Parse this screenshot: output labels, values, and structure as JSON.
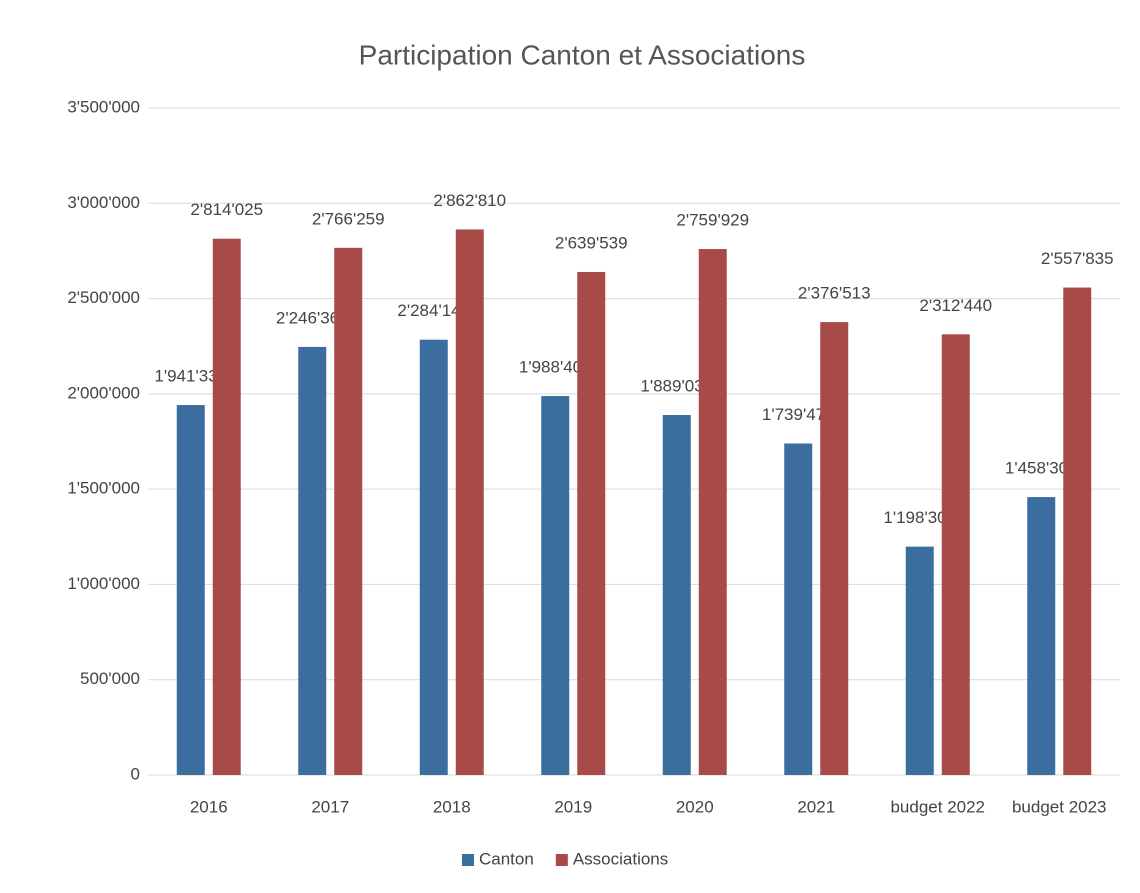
{
  "chart_data": {
    "type": "bar",
    "title": "Participation Canton et Associations",
    "categories": [
      "2016",
      "2017",
      "2018",
      "2019",
      "2020",
      "2021",
      "budget 2022",
      "budget 2023"
    ],
    "series": [
      {
        "name": "Canton",
        "color": "#3b6e9e",
        "values": [
          1941333,
          2246361,
          2284144,
          1988402,
          1889037,
          1739470,
          1198303,
          1458300
        ],
        "value_labels": [
          "1'941'333",
          "2'246'361",
          "2'284'144",
          "1'988'402",
          "1'889'037",
          "1'739'470",
          "1'198'303",
          "1'458'300"
        ]
      },
      {
        "name": "Associations",
        "color": "#a84b48",
        "values": [
          2814025,
          2766259,
          2862810,
          2639539,
          2759929,
          2376513,
          2312440,
          2557835
        ],
        "value_labels": [
          "2'814'025",
          "2'766'259",
          "2'862'810",
          "2'639'539",
          "2'759'929",
          "2'376'513",
          "2'312'440",
          "2'557'835"
        ]
      }
    ],
    "ylim": [
      0,
      3500000
    ],
    "yticks": [
      0,
      {
        "value": 500000,
        "label": "500'000"
      },
      {
        "value": 1000000,
        "label": "1'000'000"
      },
      {
        "value": 1500000,
        "label": "1'500'000"
      },
      {
        "value": 2000000,
        "label": "2'000'000"
      },
      {
        "value": 2500000,
        "label": "2'500'000"
      },
      {
        "value": 3000000,
        "label": "3'000'000"
      },
      {
        "value": 3500000,
        "label": "3'500'000"
      }
    ],
    "grid": true,
    "legend": "bottom"
  }
}
